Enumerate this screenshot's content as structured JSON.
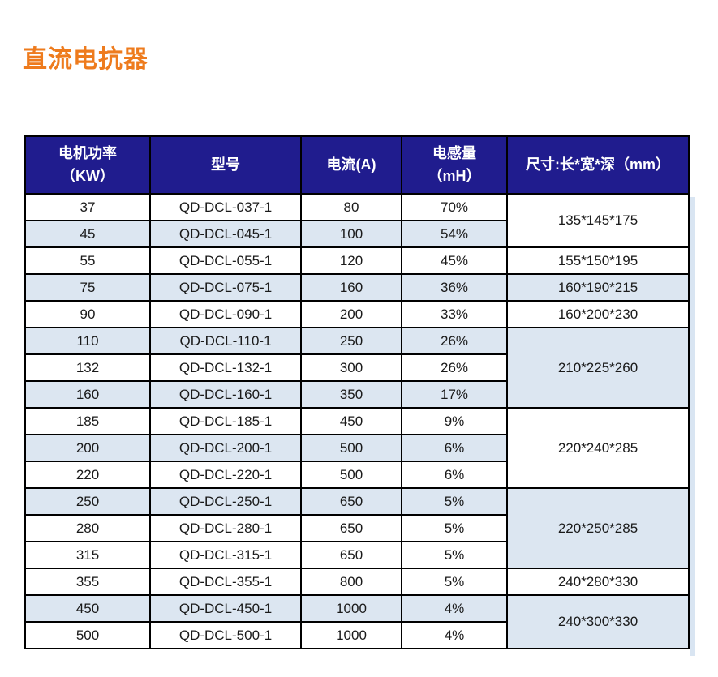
{
  "title": "直流电抗器",
  "colors": {
    "title_orange": "#ee7b1d",
    "header_bg": "#201c8e",
    "header_text": "#ffffff",
    "row_alt_bg": "#dce6f1",
    "border": "#000000"
  },
  "table": {
    "headers": {
      "power": "电机功率\n（KW）",
      "model": "型号",
      "current": "电流(A)",
      "inductance": "电感量\n（mH）",
      "dimensions": "尺寸:长*宽*深（mm）"
    },
    "rows": [
      {
        "power": "37",
        "model": "QD-DCL-037-1",
        "current": "80",
        "inductance": "70%",
        "dims": "135*145*175"
      },
      {
        "power": "45",
        "model": "QD-DCL-045-1",
        "current": "100",
        "inductance": "54%"
      },
      {
        "power": "55",
        "model": "QD-DCL-055-1",
        "current": "120",
        "inductance": "45%",
        "dims": "155*150*195"
      },
      {
        "power": "75",
        "model": "QD-DCL-075-1",
        "current": "160",
        "inductance": "36%",
        "dims": "160*190*215"
      },
      {
        "power": "90",
        "model": "QD-DCL-090-1",
        "current": "200",
        "inductance": "33%",
        "dims": "160*200*230"
      },
      {
        "power": "110",
        "model": "QD-DCL-110-1",
        "current": "250",
        "inductance": "26%",
        "dims": "210*225*260"
      },
      {
        "power": "132",
        "model": "QD-DCL-132-1",
        "current": "300",
        "inductance": "26%"
      },
      {
        "power": "160",
        "model": "QD-DCL-160-1",
        "current": "350",
        "inductance": "17%"
      },
      {
        "power": "185",
        "model": "QD-DCL-185-1",
        "current": "450",
        "inductance": "9%",
        "dims": "220*240*285"
      },
      {
        "power": "200",
        "model": "QD-DCL-200-1",
        "current": "500",
        "inductance": "6%"
      },
      {
        "power": "220",
        "model": "QD-DCL-220-1",
        "current": "500",
        "inductance": "6%"
      },
      {
        "power": "250",
        "model": "QD-DCL-250-1",
        "current": "650",
        "inductance": "5%",
        "dims": "220*250*285"
      },
      {
        "power": "280",
        "model": "QD-DCL-280-1",
        "current": "650",
        "inductance": "5%"
      },
      {
        "power": "315",
        "model": "QD-DCL-315-1",
        "current": "650",
        "inductance": "5%"
      },
      {
        "power": "355",
        "model": "QD-DCL-355-1",
        "current": "800",
        "inductance": "5%",
        "dims": "240*280*330"
      },
      {
        "power": "450",
        "model": "QD-DCL-450-1",
        "current": "1000",
        "inductance": "4%",
        "dims": "240*300*330"
      },
      {
        "power": "500",
        "model": "QD-DCL-500-1",
        "current": "1000",
        "inductance": "4%"
      }
    ]
  }
}
